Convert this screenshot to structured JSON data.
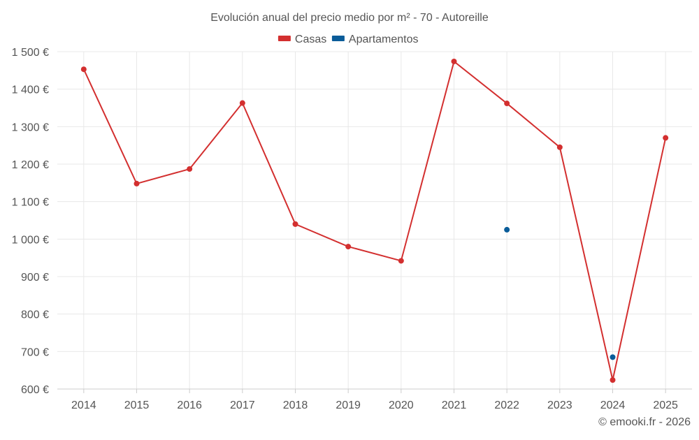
{
  "chart_data": {
    "type": "line",
    "title": "Evolución anual del precio medio por m² - 70 - Autoreille",
    "xlabel": "",
    "ylabel": "",
    "categories": [
      "2014",
      "2015",
      "2016",
      "2017",
      "2018",
      "2019",
      "2020",
      "2021",
      "2022",
      "2023",
      "2024",
      "2025"
    ],
    "ylim": [
      600,
      1500
    ],
    "y_ticks": [
      600,
      700,
      800,
      900,
      1000,
      1100,
      1200,
      1300,
      1400,
      1500
    ],
    "y_tick_labels": [
      "600 €",
      "700 €",
      "800 €",
      "900 €",
      "1 000 €",
      "1 100 €",
      "1 200 €",
      "1 300 €",
      "1 400 €",
      "1 500 €"
    ],
    "grid": true,
    "legend_position": "top-center",
    "series": [
      {
        "name": "Casas",
        "color": "#d32f2f",
        "values": [
          1453,
          1148,
          1187,
          1363,
          1040,
          980,
          942,
          1474,
          1362,
          1245,
          624,
          1270
        ]
      },
      {
        "name": "Apartamentos",
        "color": "#0a5c99",
        "values": [
          null,
          null,
          null,
          null,
          null,
          null,
          null,
          null,
          1025,
          null,
          685,
          null
        ]
      }
    ]
  },
  "footer": {
    "credit": "© emooki.fr - 2026"
  },
  "colors": {
    "grid": "#e8e8e8",
    "axis": "#cccccc",
    "text": "#555555"
  }
}
